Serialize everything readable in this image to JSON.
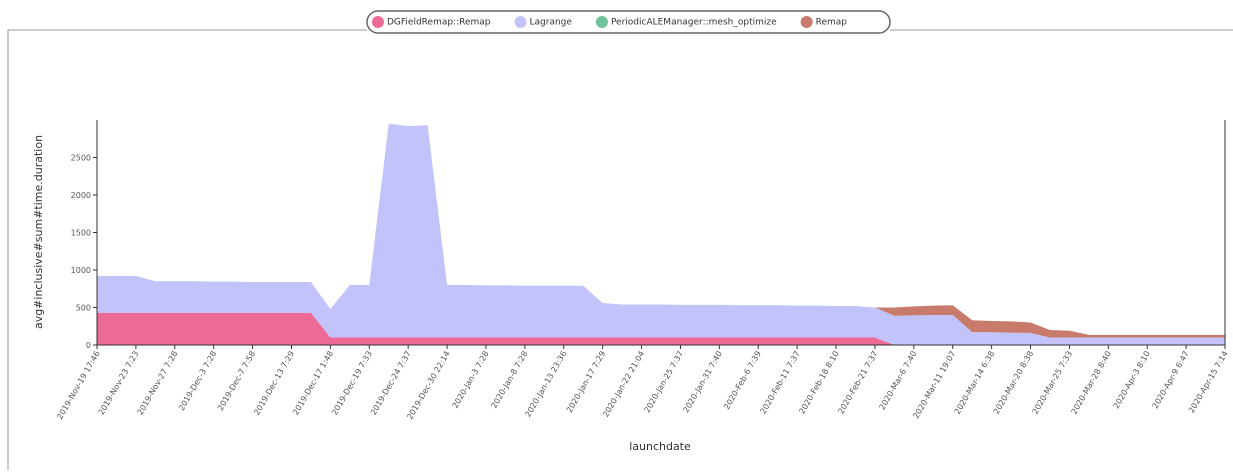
{
  "chart_data": {
    "type": "stacked_area",
    "xlabel": "launchdate",
    "ylabel": "avg#inclusive#sum#time.duration",
    "categories": [
      "2019-Nov-19 17:46",
      null,
      "2019-Nov-23 7:23",
      null,
      "2019-Nov-27 7:28",
      null,
      "2019-Dec-3 7:28",
      null,
      "2019-Dec-7 7:58",
      null,
      "2019-Dec-13 7:29",
      null,
      "2019-Dec-17 1:48",
      null,
      "2019-Dec-19 7:33",
      null,
      "2019-Dec-24 7:37",
      null,
      "2019-Dec-30 22:14",
      null,
      "2020-Jan-3 7:28",
      null,
      "2020-Jan-8 7:28",
      null,
      "2020-Jan-13 23:36",
      null,
      "2020-Jan-17 7:29",
      null,
      "2020-Jan-22 21:04",
      null,
      "2020-Jan-25 7:37",
      null,
      "2020-Jan-31 7:40",
      null,
      "2020-Feb-6 7:39",
      null,
      "2020-Feb-11 7:37",
      null,
      "2020-Feb-18 8:10",
      null,
      "2020-Feb-21 7:37",
      null,
      "2020-Mar-6 7:40",
      null,
      "2020-Mar-11 19:07",
      null,
      "2020-Mar-14 6:38",
      null,
      "2020-Mar-20 8:38",
      null,
      "2020-Mar-25 7:33",
      null,
      "2020-Mar-28 8:40",
      null,
      "2020-Apr-3 8:10",
      null,
      "2020-Apr-9 6:47",
      null,
      "2020-Apr-15 7:14"
    ],
    "series": [
      {
        "name": "DGFieldRemap::Remap",
        "color": "#ec6a96",
        "values": [
          430,
          430,
          430,
          430,
          430,
          430,
          430,
          430,
          430,
          430,
          430,
          430,
          100,
          100,
          100,
          100,
          100,
          100,
          100,
          100,
          100,
          100,
          100,
          100,
          100,
          100,
          100,
          100,
          100,
          100,
          100,
          100,
          100,
          100,
          100,
          100,
          100,
          100,
          100,
          100,
          100,
          0,
          0,
          0,
          0,
          0,
          0,
          0,
          0,
          0,
          0,
          0,
          0,
          0,
          0,
          0,
          0,
          0,
          0
        ]
      },
      {
        "name": "Lagrange",
        "color": "#c3c3fb",
        "values": [
          490,
          490,
          490,
          420,
          420,
          420,
          415,
          415,
          410,
          410,
          410,
          410,
          380,
          700,
          700,
          2850,
          2820,
          2830,
          700,
          700,
          695,
          695,
          690,
          690,
          690,
          690,
          460,
          440,
          440,
          440,
          435,
          435,
          435,
          430,
          430,
          430,
          425,
          425,
          420,
          420,
          400,
          390,
          395,
          400,
          400,
          170,
          170,
          165,
          160,
          100,
          100,
          100,
          100,
          100,
          100,
          100,
          100,
          100,
          100
        ]
      },
      {
        "name": "PeriodicALEManager::mesh_optimize",
        "color": "#6dc49b",
        "values": [
          0,
          0,
          0,
          0,
          0,
          0,
          0,
          0,
          0,
          0,
          0,
          0,
          0,
          0,
          0,
          0,
          0,
          0,
          0,
          0,
          0,
          0,
          0,
          0,
          0,
          0,
          0,
          0,
          0,
          0,
          0,
          0,
          0,
          0,
          0,
          0,
          0,
          0,
          0,
          0,
          0,
          0,
          0,
          0,
          0,
          0,
          0,
          0,
          0,
          0,
          0,
          0,
          0,
          0,
          0,
          0,
          0,
          0,
          0
        ]
      },
      {
        "name": "Remap",
        "color": "#c87b6b",
        "values": [
          0,
          0,
          0,
          0,
          0,
          0,
          0,
          0,
          0,
          0,
          0,
          0,
          0,
          0,
          0,
          0,
          0,
          0,
          0,
          0,
          0,
          0,
          0,
          0,
          0,
          0,
          0,
          0,
          0,
          0,
          0,
          0,
          0,
          0,
          0,
          0,
          0,
          0,
          0,
          0,
          0,
          110,
          120,
          125,
          130,
          160,
          150,
          150,
          140,
          100,
          90,
          35,
          35,
          35,
          35,
          35,
          35,
          35,
          35
        ]
      }
    ],
    "ylim": [
      0,
      3000
    ],
    "yticks": [
      0,
      500,
      1000,
      1500,
      2000,
      2500
    ]
  }
}
